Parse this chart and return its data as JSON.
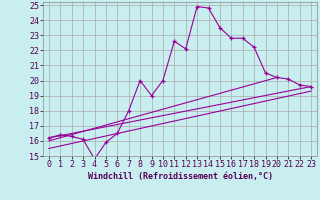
{
  "xlabel": "Windchill (Refroidissement éolien,°C)",
  "background_color": "#c8eef0",
  "line_color": "#990099",
  "grid_color": "#aaaaaa",
  "xlim": [
    -0.5,
    23.5
  ],
  "ylim": [
    15,
    25.2
  ],
  "yticks": [
    15,
    16,
    17,
    18,
    19,
    20,
    21,
    22,
    23,
    24,
    25
  ],
  "xticks": [
    0,
    1,
    2,
    3,
    4,
    5,
    6,
    7,
    8,
    9,
    10,
    11,
    12,
    13,
    14,
    15,
    16,
    17,
    18,
    19,
    20,
    21,
    22,
    23
  ],
  "xtick_labels": [
    "0",
    "1",
    "2",
    "3",
    "4",
    "5",
    "6",
    "7",
    "8",
    "9",
    "10",
    "11",
    "12",
    "13",
    "14",
    "15",
    "16",
    "17",
    "18",
    "19",
    "20",
    "21",
    "22",
    "23"
  ],
  "series1_x": [
    0,
    1,
    2,
    3,
    4,
    5,
    6,
    7,
    8,
    9,
    10,
    11,
    12,
    13,
    14,
    15,
    16,
    17,
    18,
    19,
    20,
    21,
    22,
    23
  ],
  "series1_y": [
    16.2,
    16.4,
    16.3,
    16.1,
    14.8,
    15.9,
    16.5,
    18.0,
    20.0,
    19.0,
    20.0,
    22.6,
    22.1,
    24.9,
    24.8,
    23.5,
    22.8,
    22.8,
    22.2,
    20.5,
    20.2,
    20.1,
    19.7,
    19.6
  ],
  "series2_x": [
    0,
    23
  ],
  "series2_y": [
    16.2,
    19.6
  ],
  "series3_x": [
    0,
    20
  ],
  "series3_y": [
    16.0,
    20.2
  ],
  "series4_x": [
    0,
    23
  ],
  "series4_y": [
    15.5,
    19.3
  ],
  "xlabel_fontsize": 6,
  "tick_fontsize": 6
}
